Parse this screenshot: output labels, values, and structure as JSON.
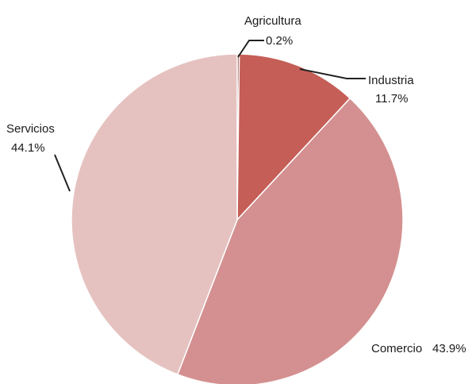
{
  "chart_data": {
    "type": "pie",
    "title": "",
    "slices": [
      {
        "label": "Agricultura",
        "value": 0.2,
        "value_label": "0.2%",
        "color": "#7a2b22"
      },
      {
        "label": "Industria",
        "value": 11.7,
        "value_label": "11.7%",
        "color": "#c45e57"
      },
      {
        "label": "Comercio",
        "value": 43.9,
        "value_label": "43.9%",
        "color": "#d49090"
      },
      {
        "label": "Servicios",
        "value": 44.1,
        "value_label": "44.1%",
        "color": "#e5c2c0"
      }
    ],
    "start_angle": "12 o'clock",
    "direction": "clockwise",
    "legend": "none"
  }
}
